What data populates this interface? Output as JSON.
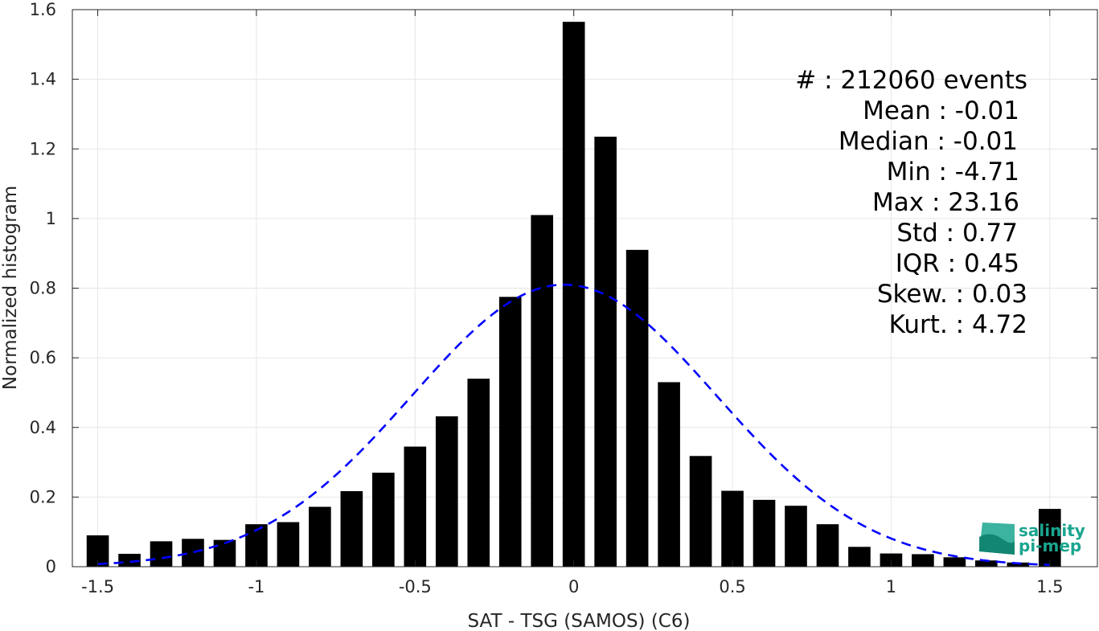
{
  "chart_data": {
    "type": "bar",
    "xlabel": "SAT - TSG (SAMOS) (C6)",
    "ylabel": "Normalized histogram",
    "xlim": [
      -1.58,
      1.65
    ],
    "ylim": [
      0,
      1.6
    ],
    "grid": true,
    "x_ticks": [
      -1.5,
      -1,
      -0.5,
      0,
      0.5,
      1,
      1.5
    ],
    "x_tick_labels": [
      "-1.5",
      "-1",
      "-0.5",
      "0",
      "0.5",
      "1",
      "1.5"
    ],
    "y_ticks": [
      0,
      0.2,
      0.4,
      0.6,
      0.8,
      1,
      1.2,
      1.4,
      1.6
    ],
    "y_tick_labels": [
      "0",
      "0.2",
      "0.4",
      "0.6",
      "0.8",
      "1",
      "1.2",
      "1.4",
      "1.6"
    ],
    "bar_width": 0.07,
    "bar_color": "#000000",
    "bins": [
      -1.5,
      -1.4,
      -1.3,
      -1.2,
      -1.1,
      -1.0,
      -0.9,
      -0.8,
      -0.7,
      -0.6,
      -0.5,
      -0.4,
      -0.3,
      -0.2,
      -0.1,
      0.0,
      0.1,
      0.2,
      0.3,
      0.4,
      0.5,
      0.6,
      0.7,
      0.8,
      0.9,
      1.0,
      1.1,
      1.2,
      1.3,
      1.4,
      1.5
    ],
    "values": [
      0.09,
      0.037,
      0.073,
      0.08,
      0.077,
      0.122,
      0.128,
      0.172,
      0.217,
      0.27,
      0.345,
      0.432,
      0.54,
      0.775,
      1.01,
      1.565,
      1.235,
      0.91,
      0.53,
      0.318,
      0.218,
      0.192,
      0.175,
      0.122,
      0.057,
      0.038,
      0.036,
      0.027,
      0.018,
      0.012,
      0.166
    ],
    "fit": {
      "type": "gaussian",
      "mean": -0.03,
      "std": 0.48,
      "peak": 0.81,
      "x_range": [
        -1.5,
        1.5
      ],
      "color": "#0000ff",
      "style": "dashed"
    },
    "annotations": [
      "#  : 212060 events",
      "Mean : -0.01",
      "Median : -0.01",
      "Min : -4.71",
      "Max : 23.16",
      "Std : 0.77",
      "IQR : 0.45",
      "Skew. : 0.03",
      "Kurt. : 4.72"
    ]
  },
  "logo": {
    "line1": "salinity",
    "line2": "pi-mep",
    "color": "#1aa58f"
  }
}
